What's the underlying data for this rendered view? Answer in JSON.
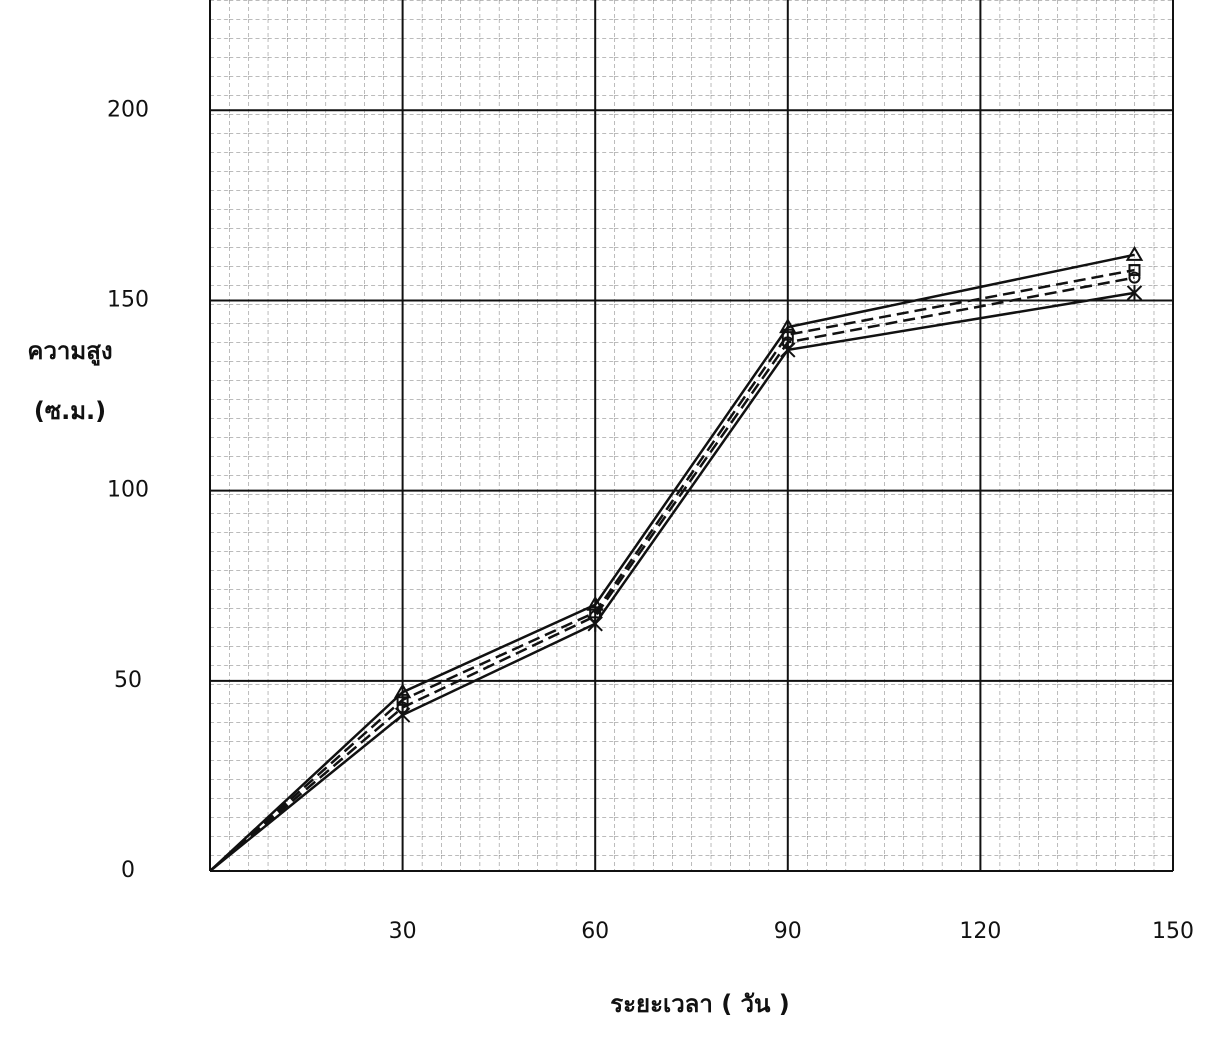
{
  "chart_data": {
    "type": "line",
    "ylabel_line1": "ความสูง",
    "ylabel_line2": "(ซ.ม.)",
    "xlabel": "ระยะเวลา ( วัน )",
    "x": [
      0,
      30,
      60,
      90,
      144
    ],
    "series": [
      {
        "color": "#111111",
        "marker": "triangle",
        "dash": false,
        "values": [
          0,
          47,
          70,
          143,
          162
        ]
      },
      {
        "color": "#111111",
        "marker": "square",
        "dash": true,
        "values": [
          0,
          45,
          68,
          141,
          158
        ]
      },
      {
        "color": "#111111",
        "marker": "circle",
        "dash": true,
        "values": [
          0,
          43,
          67,
          139,
          156
        ]
      },
      {
        "color": "#111111",
        "marker": "star",
        "dash": false,
        "values": [
          0,
          41,
          65,
          137,
          152
        ]
      }
    ],
    "xlim": [
      0,
      150
    ],
    "ylim": [
      0,
      229
    ],
    "xticks": [
      30,
      60,
      90,
      120,
      150
    ],
    "yticks": [
      0,
      50,
      100,
      150,
      200
    ],
    "grid": true
  }
}
